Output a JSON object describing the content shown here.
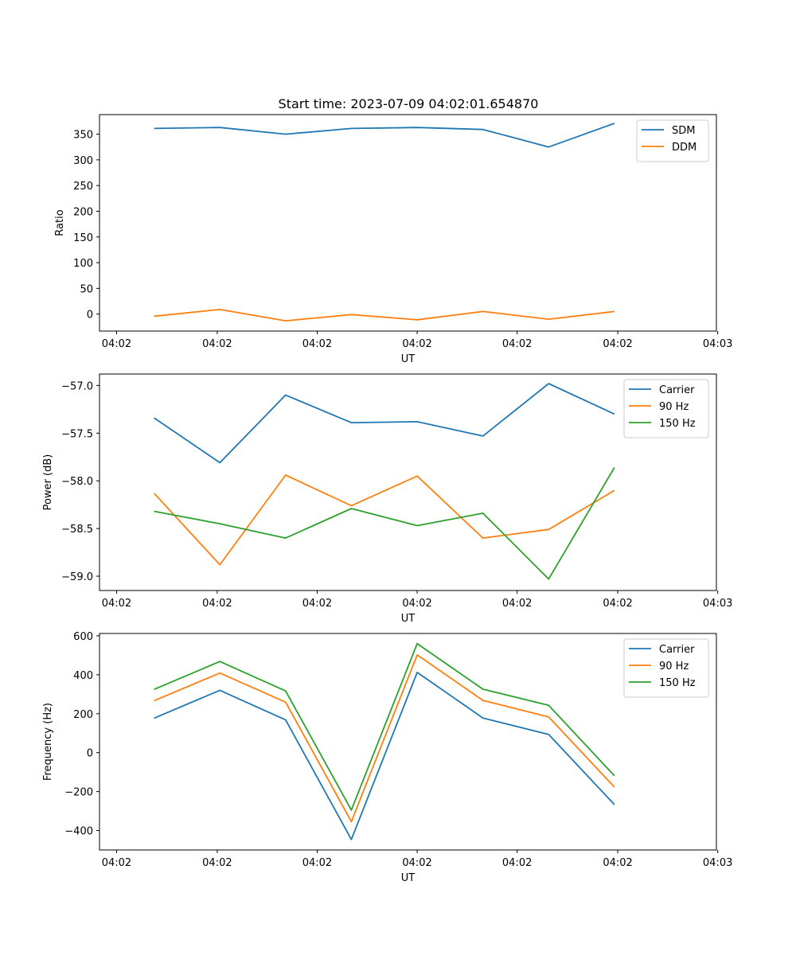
{
  "figure": {
    "title": "Start time: 2023-07-09 04:02:01.654870"
  },
  "chart_data": [
    {
      "type": "line",
      "title": "Start time: 2023-07-09 04:02:01.654870",
      "xlabel": "UT",
      "ylabel": "Ratio",
      "x": [
        1,
        2,
        3,
        4,
        5,
        6,
        7,
        8
      ],
      "xlim": [
        0.17,
        9.55
      ],
      "ylim": [
        -33,
        388
      ],
      "xticks": [
        0.43,
        1.96,
        3.48,
        5.0,
        6.52,
        8.05,
        9.57
      ],
      "xtick_labels": [
        "04:02",
        "04:02",
        "04:02",
        "04:02",
        "04:02",
        "04:02",
        "04:03"
      ],
      "yticks": [
        0,
        50,
        100,
        150,
        200,
        250,
        300,
        350
      ],
      "ytick_labels": [
        "0",
        "50",
        "100",
        "150",
        "200",
        "250",
        "300",
        "350"
      ],
      "series": [
        {
          "name": "SDM",
          "color": "#1f77b4",
          "values": [
            361,
            363,
            350,
            361,
            363,
            359,
            325,
            371
          ]
        },
        {
          "name": "DDM",
          "color": "#ff7f0e",
          "values": [
            -4,
            9,
            -13,
            -1,
            -11,
            5,
            -10,
            5
          ]
        }
      ],
      "legend": "top-right"
    },
    {
      "type": "line",
      "xlabel": "UT",
      "ylabel": "Power (dB)",
      "x": [
        1,
        2,
        3,
        4,
        5,
        6,
        7,
        8
      ],
      "xlim": [
        0.17,
        9.55
      ],
      "ylim": [
        -59.15,
        -56.88
      ],
      "xticks": [
        0.43,
        1.96,
        3.48,
        5.0,
        6.52,
        8.05,
        9.57
      ],
      "xtick_labels": [
        "04:02",
        "04:02",
        "04:02",
        "04:02",
        "04:02",
        "04:02",
        "04:03"
      ],
      "yticks": [
        -59.0,
        -58.5,
        -58.0,
        -57.5,
        -57.0
      ],
      "ytick_labels": [
        "−59.0",
        "−58.5",
        "−58.0",
        "−57.5",
        "−57.0"
      ],
      "series": [
        {
          "name": "Carrier",
          "color": "#1f77b4",
          "values": [
            -57.34,
            -57.81,
            -57.1,
            -57.39,
            -57.38,
            -57.53,
            -56.98,
            -57.3
          ]
        },
        {
          "name": "90 Hz",
          "color": "#ff7f0e",
          "values": [
            -58.13,
            -58.88,
            -57.94,
            -58.26,
            -57.95,
            -58.6,
            -58.51,
            -58.1
          ]
        },
        {
          "name": "150 Hz",
          "color": "#2ca02c",
          "values": [
            -58.32,
            -58.45,
            -58.6,
            -58.29,
            -58.47,
            -58.34,
            -59.03,
            -57.86
          ]
        }
      ],
      "legend": "top-right"
    },
    {
      "type": "line",
      "xlabel": "UT",
      "ylabel": "Frequency (Hz)",
      "x": [
        1,
        2,
        3,
        4,
        5,
        6,
        7,
        8
      ],
      "xlim": [
        0.17,
        9.55
      ],
      "ylim": [
        -500,
        612
      ],
      "xticks": [
        0.43,
        1.96,
        3.48,
        5.0,
        6.52,
        8.05,
        9.57
      ],
      "xtick_labels": [
        "04:02",
        "04:02",
        "04:02",
        "04:02",
        "04:02",
        "04:02",
        "04:03"
      ],
      "yticks": [
        -400,
        -200,
        0,
        200,
        400,
        600
      ],
      "ytick_labels": [
        "−400",
        "−200",
        "0",
        "200",
        "400",
        "600"
      ],
      "series": [
        {
          "name": "Carrier",
          "color": "#1f77b4",
          "values": [
            177,
            320,
            168,
            -446,
            412,
            178,
            93,
            -267
          ]
        },
        {
          "name": "90 Hz",
          "color": "#ff7f0e",
          "values": [
            267,
            409,
            259,
            -355,
            502,
            268,
            183,
            -177
          ]
        },
        {
          "name": "150 Hz",
          "color": "#2ca02c",
          "values": [
            325,
            468,
            317,
            -295,
            560,
            326,
            243,
            -119
          ]
        }
      ],
      "legend": "top-right"
    }
  ]
}
